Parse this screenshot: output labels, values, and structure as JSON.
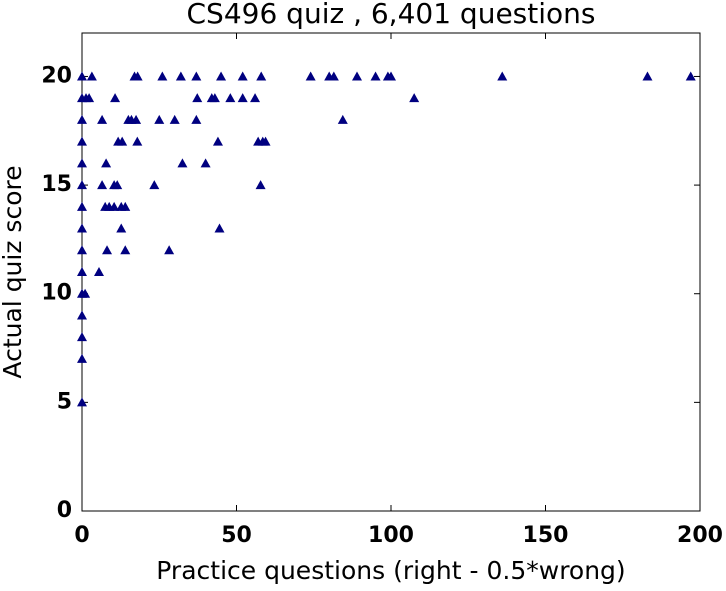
{
  "chart_data": {
    "type": "scatter",
    "title": "CS496 quiz , 6,401 questions",
    "x_label": "Practice questions (right - 0.5*wrong)",
    "y_label": "Actual quiz score",
    "color": "#000080",
    "x": [
      0,
      3.2,
      17,
      18,
      26,
      32,
      37,
      45,
      52,
      58,
      74,
      80,
      81.5,
      89,
      95,
      99,
      100,
      136,
      183,
      197,
      0,
      1.3,
      2.3,
      10.7,
      37.3,
      42,
      43,
      48,
      52,
      56,
      107.5,
      0,
      6.5,
      15,
      16,
      17.5,
      25,
      30,
      37,
      84.4,
      0,
      11.7,
      13,
      17.9,
      44,
      57,
      58.5,
      59.4,
      0,
      7.8,
      32.5,
      40,
      0,
      6.5,
      10.4,
      11.4,
      23.4,
      57.8,
      0,
      7.5,
      8.8,
      10.4,
      12.7,
      14,
      0,
      12.7,
      44.5,
      0,
      8.1,
      14,
      28.2,
      0,
      5.5,
      0,
      1,
      0,
      0,
      0,
      0
    ],
    "values": [
      20,
      20,
      20,
      20,
      20,
      20,
      20,
      20,
      20,
      20,
      20,
      20,
      20,
      20,
      20,
      20,
      20,
      20,
      20,
      20,
      19,
      19,
      19,
      19,
      19,
      19,
      19,
      19,
      19,
      19,
      19,
      18,
      18,
      18,
      18,
      18,
      18,
      18,
      18,
      18,
      17,
      17,
      17,
      17,
      17,
      17,
      17,
      17,
      16,
      16,
      16,
      16,
      15,
      15,
      15,
      15,
      15,
      15,
      14,
      14,
      14,
      14,
      14,
      14,
      13,
      13,
      13,
      12,
      12,
      12,
      12,
      11,
      11,
      10,
      10,
      9,
      8,
      7,
      5
    ],
    "xlim": [
      0,
      200
    ],
    "ylim": [
      0,
      22
    ],
    "xticks": [
      0,
      50,
      100,
      150,
      200
    ],
    "yticks": [
      0,
      5,
      10,
      15,
      20
    ]
  }
}
